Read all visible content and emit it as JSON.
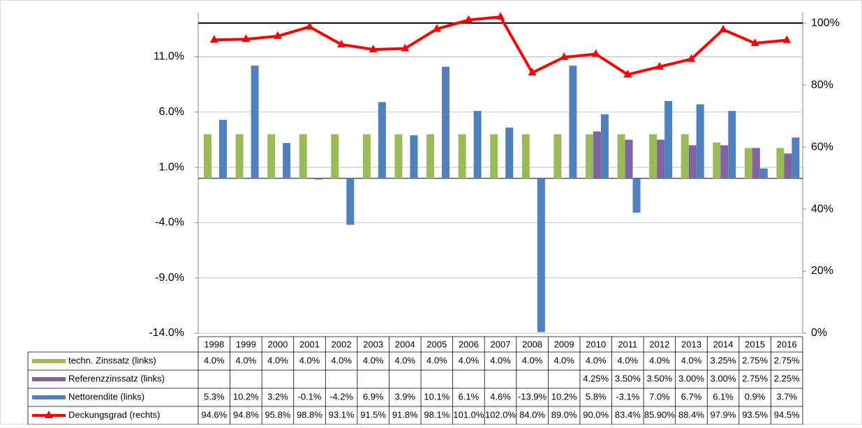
{
  "chart_data": {
    "type": "bar-line-table",
    "categories": [
      "1998",
      "1999",
      "2000",
      "2001",
      "2002",
      "2003",
      "2004",
      "2005",
      "2006",
      "2007",
      "2008",
      "2009",
      "2010",
      "2011",
      "2012",
      "2013",
      "2014",
      "2015",
      "2016"
    ],
    "series": [
      {
        "name": "techn. Zinssatz (links)",
        "color": "#9bbb59",
        "type": "bar",
        "values": [
          4,
          4,
          4,
          4,
          4,
          4,
          4,
          4,
          4,
          4,
          4,
          4,
          4,
          4,
          4,
          4,
          3.25,
          2.75,
          2.75
        ],
        "value_labels": [
          "4.0%",
          "4.0%",
          "4.0%",
          "4.0%",
          "4.0%",
          "4.0%",
          "4.0%",
          "4.0%",
          "4.0%",
          "4.0%",
          "4.0%",
          "4.0%",
          "4.0%",
          "4.0%",
          "4.0%",
          "4.0%",
          "3.25%",
          "2.75%",
          "2.75%"
        ]
      },
      {
        "name": "Referenzzinssatz (links)",
        "color": "#8064a2",
        "type": "bar",
        "values": [
          null,
          null,
          null,
          null,
          null,
          null,
          null,
          null,
          null,
          null,
          null,
          null,
          4.25,
          3.5,
          3.5,
          3,
          3,
          2.75,
          2.25
        ],
        "value_labels": [
          null,
          null,
          null,
          null,
          null,
          null,
          null,
          null,
          null,
          null,
          null,
          null,
          "4.25%",
          "3.50%",
          "3.50%",
          "3.00%",
          "3.00%",
          "2.75%",
          "2.25%"
        ]
      },
      {
        "name": "Nettorendite (links)",
        "color": "#4f81bd",
        "type": "bar",
        "values": [
          5.3,
          10.2,
          3.2,
          -0.1,
          -4.2,
          6.9,
          3.9,
          10.1,
          6.1,
          4.6,
          -13.9,
          10.2,
          5.8,
          -3.1,
          7.0,
          6.7,
          6.1,
          0.9,
          3.7
        ],
        "value_labels": [
          "5.3%",
          "10.2%",
          "3.2%",
          "-0.1%",
          "-4.2%",
          "6.9%",
          "3.9%",
          "10.1%",
          "6.1%",
          "4.6%",
          "-13.9%",
          "10.2%",
          "5.8%",
          "-3.1%",
          "7.0%",
          "6.7%",
          "6.1%",
          "0.9%",
          "3.7%"
        ]
      },
      {
        "name": "Deckungsgrad (rechts)",
        "color": "#ff0000",
        "type": "line",
        "axis": "y2",
        "values": [
          94.6,
          94.8,
          95.8,
          98.8,
          93.1,
          91.5,
          91.8,
          98.1,
          101.0,
          102.0,
          84.0,
          89.0,
          90.0,
          83.4,
          85.9,
          88.4,
          97.9,
          93.5,
          94.5
        ],
        "value_labels": [
          "94.6%",
          "94.8%",
          "95.8%",
          "98.8%",
          "93.1%",
          "91.5%",
          "91.8%",
          "98.1%",
          "101.0%",
          "102.0%",
          "84.0%",
          "89.0%",
          "90.0%",
          "83.4%",
          "85.90%",
          "88.4%",
          "97.9%",
          "93.5%",
          "94.5%"
        ]
      }
    ],
    "ylim": [
      -14,
      15
    ],
    "yticks": [
      {
        "value": -14,
        "label": "-14.0%"
      },
      {
        "value": -9,
        "label": "-9.0%"
      },
      {
        "value": -4,
        "label": "-4.0%"
      },
      {
        "value": 1,
        "label": "1.0%"
      },
      {
        "value": 6,
        "label": "6.0%"
      },
      {
        "value": 11,
        "label": "11.0%"
      }
    ],
    "y2lim": [
      0,
      103.4
    ],
    "y2ticks": [
      {
        "value": 0,
        "label": "0%"
      },
      {
        "value": 20,
        "label": "20%"
      },
      {
        "value": 40,
        "label": "40%"
      },
      {
        "value": 60,
        "label": "60%"
      },
      {
        "value": 80,
        "label": "80%"
      },
      {
        "value": 100,
        "label": "100%"
      }
    ],
    "y2_reference": 100,
    "grid": true
  }
}
